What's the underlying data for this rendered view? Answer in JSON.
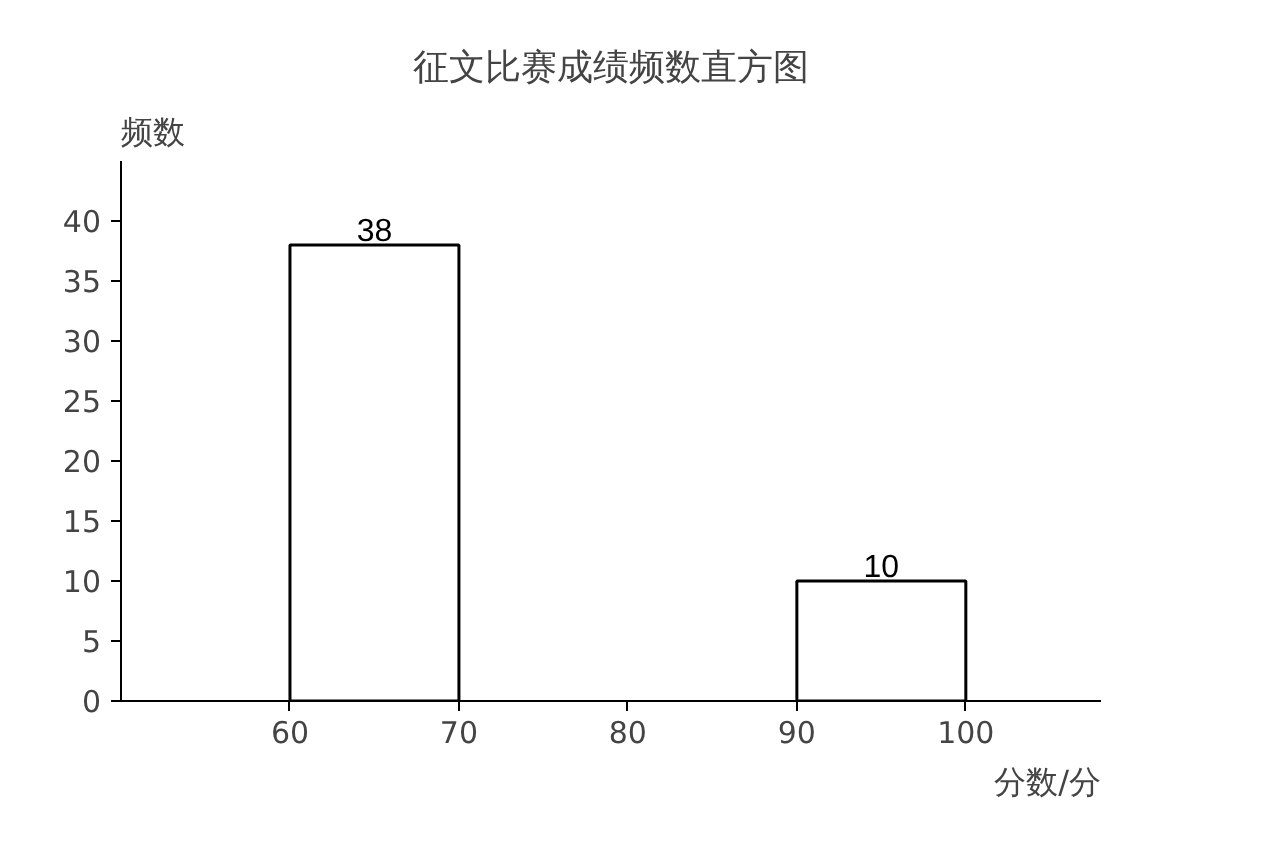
{
  "chart_data": {
    "type": "histogram",
    "title": "征文比赛成绩频数直方图",
    "xlabel": "分数/分",
    "ylabel": "频数",
    "bins": [
      60,
      70,
      80,
      90,
      100
    ],
    "values": [
      38,
      null,
      null,
      10
    ],
    "color": "#ffffff",
    "xlim": [
      50,
      108
    ],
    "xticks": [
      60,
      70,
      80,
      90,
      100
    ],
    "ylim": [
      0,
      45
    ],
    "yticks": [
      0,
      5,
      10,
      15,
      20,
      25,
      30,
      35,
      40
    ],
    "data_labels": true,
    "grid": false
  }
}
